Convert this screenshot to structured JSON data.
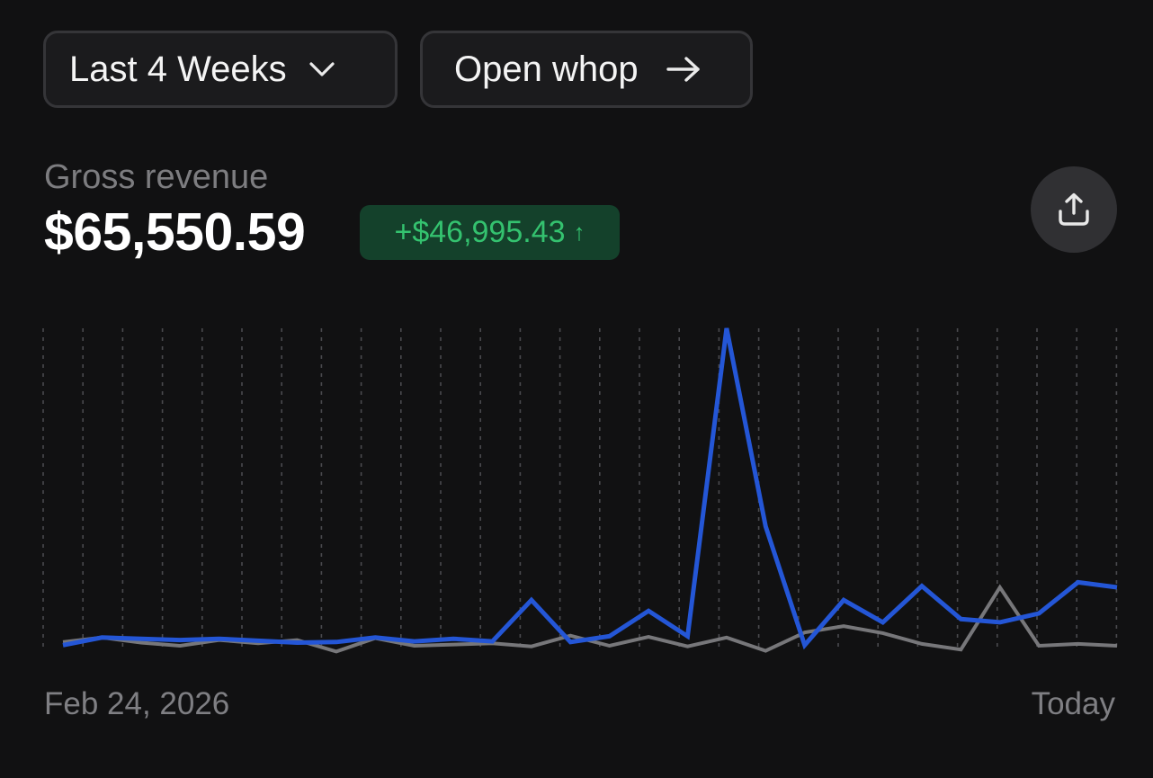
{
  "toolbar": {
    "range_label": "Last 4 Weeks",
    "range_icon": "chevron-down-icon",
    "open_label": "Open whop",
    "open_icon": "arrow-right-icon"
  },
  "summary": {
    "metric_label": "Gross revenue",
    "value": "$65,550.59",
    "delta": "+$46,995.43",
    "delta_arrow": "↑",
    "share_icon": "share-icon"
  },
  "colors": {
    "accent": "#2456d6",
    "comparison": "#77777a",
    "delta_text": "#34c26f",
    "delta_bg": "#14412b"
  },
  "chart_data": {
    "type": "line",
    "x_start_label": "Feb 24, 2026",
    "x_end_label": "Today",
    "grid": "vertical-dashed",
    "series": [
      {
        "values": [
          0.2,
          2.6,
          2.2,
          1.8,
          2.2,
          1.6,
          1.0,
          1.2,
          2.6,
          1.4,
          2.2,
          1.4,
          14.4,
          1.2,
          3.0,
          11.0,
          3.0,
          100,
          37.6,
          0.2,
          14.4,
          7.4,
          18.8,
          8.4,
          7.4,
          10.2,
          20.0,
          18.4
        ],
        "color": "#2456d6"
      },
      {
        "values": [
          1.2,
          2.6,
          1.0,
          0,
          1.8,
          0.8,
          1.8,
          -1.8,
          2.4,
          0,
          0.4,
          0.8,
          -0.2,
          3.2,
          0,
          2.8,
          -0.2,
          2.6,
          -1.6,
          4.2,
          6.2,
          4.0,
          0.6,
          -1.2,
          18.4,
          0,
          0.6,
          0
        ]
      }
    ]
  }
}
